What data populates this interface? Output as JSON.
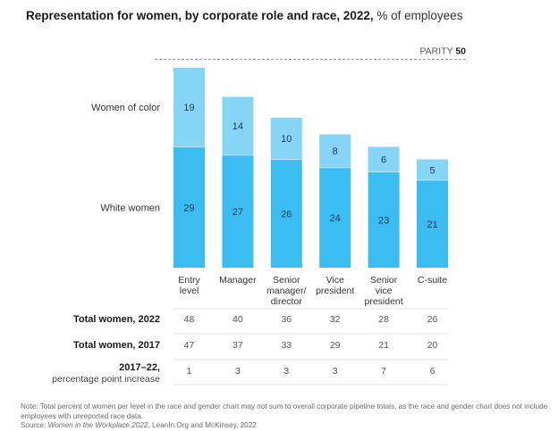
{
  "chart_data": {
    "type": "bar",
    "stacked": true,
    "title": "Representation for women, by corporate role and race, 2022,",
    "title_unit": "% of employees",
    "categories": [
      [
        "Entry",
        "level"
      ],
      [
        "Manager"
      ],
      [
        "Senior",
        "manager/",
        "director"
      ],
      [
        "Vice",
        "president"
      ],
      [
        "Senior",
        "vice",
        "president"
      ],
      [
        "C-suite"
      ]
    ],
    "series": [
      {
        "name": "White women",
        "color": "#3bbdf1",
        "values": [
          29,
          27,
          26,
          24,
          23,
          21
        ]
      },
      {
        "name": "Women of color",
        "color": "#86d5f6",
        "values": [
          19,
          14,
          10,
          8,
          6,
          5
        ]
      }
    ],
    "ylim": [
      0,
      50
    ],
    "reference_line": {
      "label": "PARITY",
      "value": 50
    },
    "grid": false,
    "legend": "left, inline beside bars",
    "table": {
      "rows": [
        {
          "label": [
            "Total women, 2022"
          ],
          "values": [
            48,
            40,
            36,
            32,
            28,
            26
          ]
        },
        {
          "label": [
            "Total women, 2017"
          ],
          "values": [
            47,
            37,
            33,
            29,
            21,
            20
          ]
        },
        {
          "label": [
            "2017–22,",
            "percentage point increase"
          ],
          "values": [
            1,
            3,
            3,
            3,
            7,
            6
          ]
        }
      ]
    }
  },
  "footnote": {
    "note": "Note: Total percent of women per level in the race and gender chart may not sum to overall corporate pipeline totals, as the race and gender chart does not include employees with unreported race data.",
    "source_prefix": "Source: ",
    "source_title": "Women in the Workplace 2022",
    "source_rest": ", LeanIn.Org and McKinsey, 2022"
  }
}
